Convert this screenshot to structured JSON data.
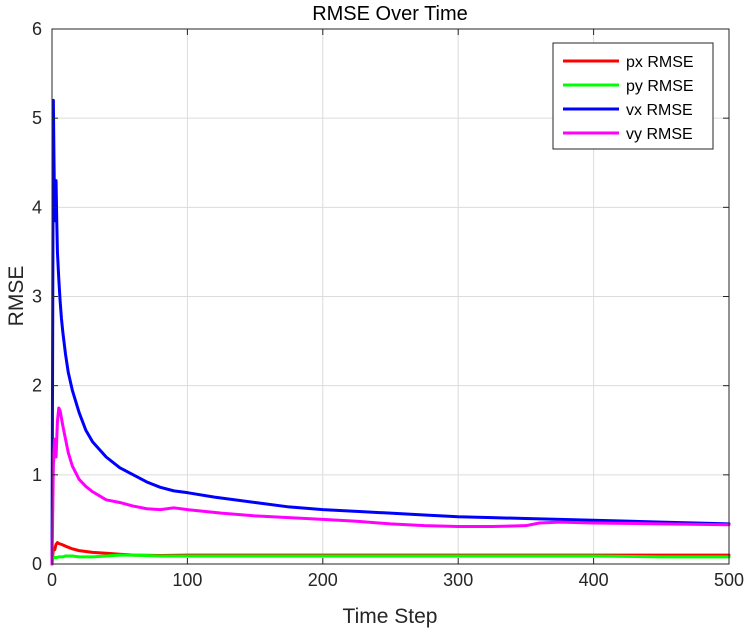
{
  "chart_data": {
    "type": "line",
    "title": "RMSE Over Time",
    "xlabel": "Time Step",
    "ylabel": "RMSE",
    "xlim": [
      0,
      500
    ],
    "ylim": [
      0,
      6
    ],
    "xticks": [
      0,
      100,
      200,
      300,
      400,
      500
    ],
    "yticks": [
      0,
      1,
      2,
      3,
      4,
      5,
      6
    ],
    "grid": true,
    "legend_position": "top-right",
    "series": [
      {
        "name": "px RMSE",
        "color": "#ff0000",
        "x": [
          0,
          1,
          2,
          3,
          4,
          5,
          7,
          10,
          15,
          20,
          30,
          40,
          50,
          60,
          80,
          100,
          150,
          200,
          250,
          300,
          350,
          400,
          450,
          500
        ],
        "y": [
          0.0,
          0.18,
          0.16,
          0.22,
          0.24,
          0.23,
          0.22,
          0.2,
          0.17,
          0.15,
          0.13,
          0.12,
          0.11,
          0.1,
          0.095,
          0.1,
          0.1,
          0.1,
          0.1,
          0.1,
          0.1,
          0.1,
          0.1,
          0.1
        ]
      },
      {
        "name": "py RMSE",
        "color": "#00ff00",
        "x": [
          0,
          1,
          3,
          5,
          8,
          10,
          15,
          20,
          30,
          40,
          50,
          60,
          80,
          100,
          150,
          200,
          250,
          300,
          350,
          400,
          450,
          500
        ],
        "y": [
          0.0,
          0.08,
          0.07,
          0.08,
          0.08,
          0.09,
          0.09,
          0.08,
          0.08,
          0.09,
          0.1,
          0.1,
          0.09,
          0.09,
          0.09,
          0.09,
          0.09,
          0.09,
          0.09,
          0.09,
          0.08,
          0.08
        ]
      },
      {
        "name": "vx RMSE",
        "color": "#0000ff",
        "x": [
          0,
          1,
          1.5,
          2,
          2.5,
          3,
          3.5,
          4,
          5,
          6,
          7,
          8,
          10,
          12,
          15,
          20,
          25,
          30,
          40,
          50,
          60,
          70,
          80,
          90,
          100,
          120,
          150,
          175,
          200,
          225,
          250,
          275,
          300,
          325,
          350,
          375,
          400,
          450,
          500
        ],
        "y": [
          0.0,
          5.2,
          4.5,
          3.85,
          4.1,
          4.3,
          3.85,
          3.5,
          3.2,
          2.95,
          2.75,
          2.6,
          2.35,
          2.15,
          1.95,
          1.7,
          1.5,
          1.37,
          1.2,
          1.08,
          1.0,
          0.92,
          0.86,
          0.82,
          0.8,
          0.75,
          0.69,
          0.64,
          0.61,
          0.59,
          0.57,
          0.55,
          0.53,
          0.52,
          0.51,
          0.5,
          0.49,
          0.47,
          0.45
        ]
      },
      {
        "name": "vy RMSE",
        "color": "#ff00ff",
        "x": [
          0,
          1,
          2,
          3,
          4,
          5,
          6,
          8,
          10,
          12,
          15,
          20,
          25,
          30,
          40,
          50,
          60,
          70,
          80,
          90,
          100,
          125,
          150,
          175,
          200,
          225,
          250,
          275,
          300,
          325,
          350,
          360,
          375,
          400,
          450,
          500
        ],
        "y": [
          0.0,
          1.1,
          1.4,
          1.2,
          1.6,
          1.75,
          1.72,
          1.55,
          1.4,
          1.25,
          1.1,
          0.95,
          0.87,
          0.81,
          0.72,
          0.69,
          0.65,
          0.62,
          0.61,
          0.63,
          0.61,
          0.57,
          0.54,
          0.52,
          0.5,
          0.48,
          0.45,
          0.43,
          0.42,
          0.42,
          0.43,
          0.46,
          0.47,
          0.46,
          0.45,
          0.44
        ]
      }
    ]
  }
}
